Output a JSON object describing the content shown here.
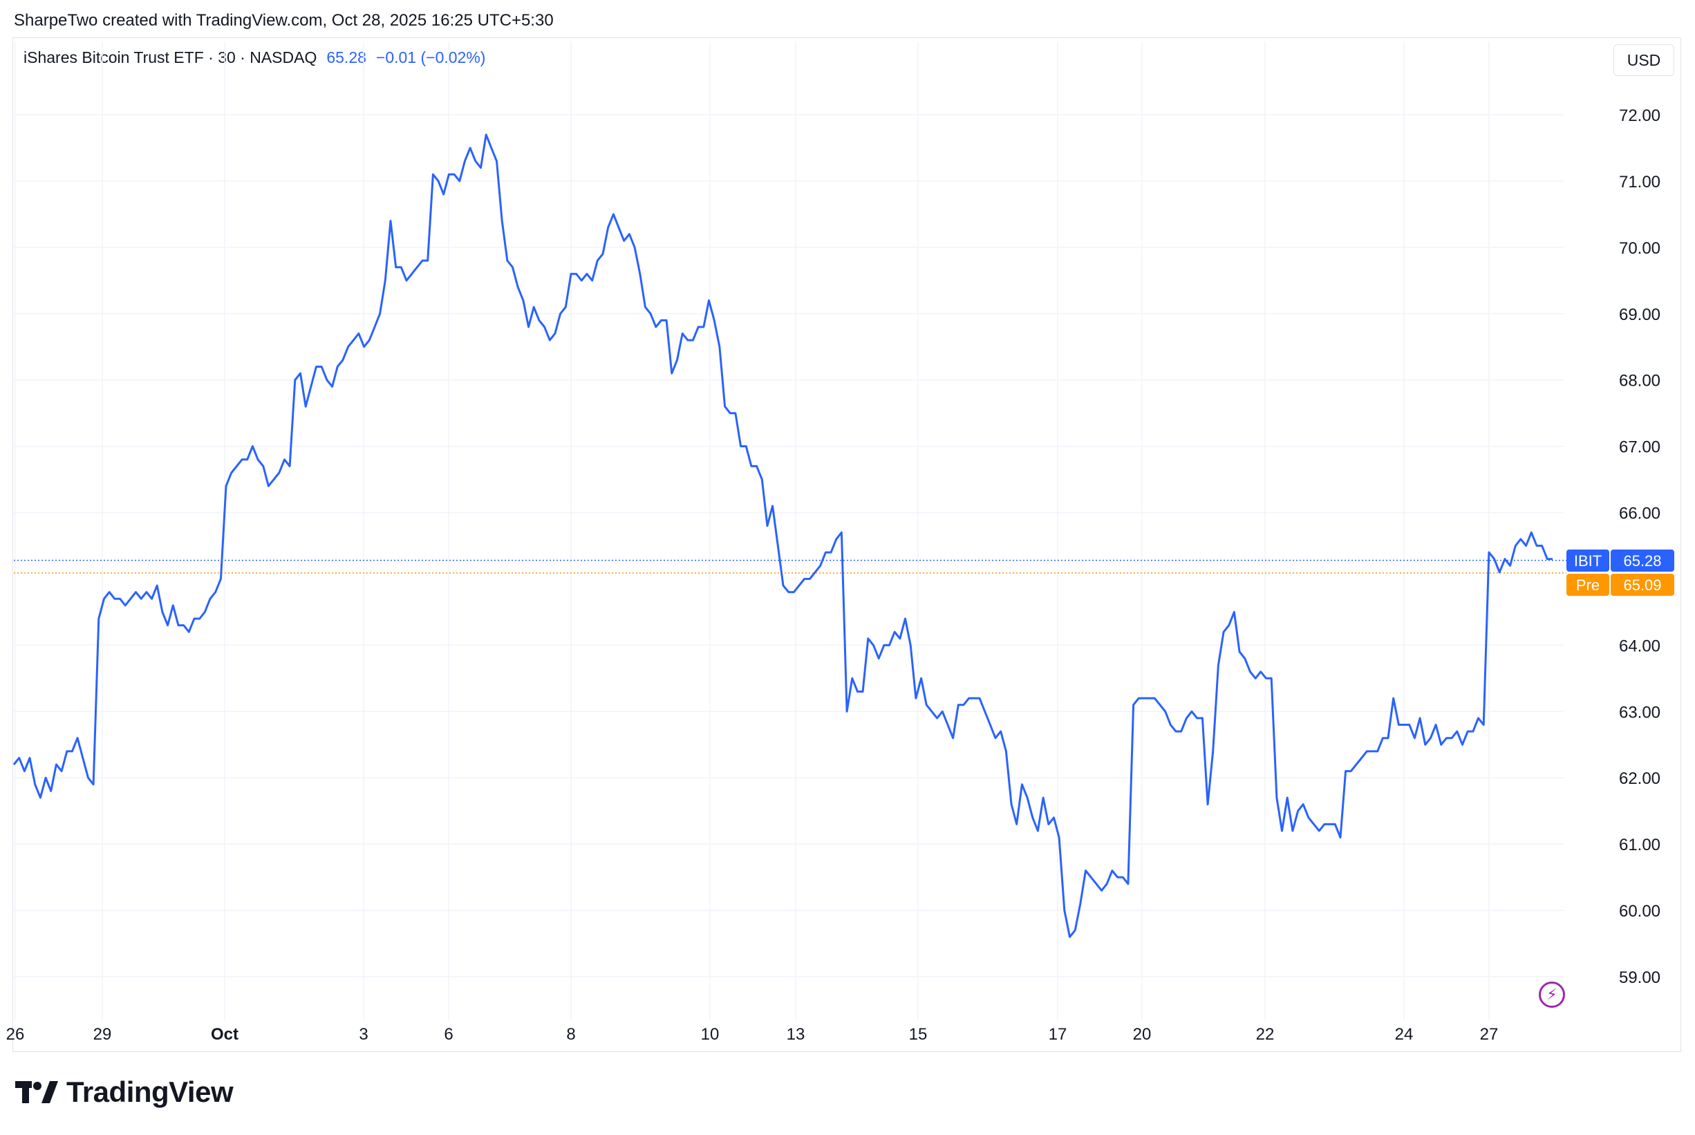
{
  "header": {
    "credit": "SharpeTwo created with TradingView.com, Oct 28, 2025 16:25 UTC+5:30"
  },
  "legend": {
    "instrument": "iShares Bitcoin Trust ETF · 30 · NASDAQ",
    "last": "65.28",
    "change": "−0.01 (−0.02%)"
  },
  "currency_button": "USD",
  "brand": "TradingView",
  "colors": {
    "line": "#2962ff",
    "pre": "#ff9800",
    "grid": "#f0f3fa",
    "text": "#131722"
  },
  "chart_data": {
    "type": "line",
    "title": "",
    "xlabel": "",
    "ylabel": "",
    "ylim": [
      58.5,
      72.6
    ],
    "x_tick_labels": [
      "26",
      "29",
      "Oct",
      "3",
      "6",
      "8",
      "10",
      "13",
      "15",
      "17",
      "20",
      "22",
      "24",
      "27"
    ],
    "y_tick_labels": [
      "72.00",
      "71.00",
      "70.00",
      "69.00",
      "68.00",
      "67.00",
      "66.00",
      "64.00",
      "63.00",
      "62.00",
      "61.00",
      "60.00",
      "59.00"
    ],
    "price_labels": [
      {
        "tag": "IBIT",
        "value": "65.28",
        "price": 65.28,
        "color": "#2962ff"
      },
      {
        "tag": "Pre",
        "value": "65.09",
        "price": 65.09,
        "color": "#ff9800"
      }
    ],
    "series": [
      {
        "values": [
          62.2,
          62.3,
          62.1,
          62.3,
          61.9,
          61.7,
          62.0,
          61.8,
          62.2,
          62.1,
          62.4,
          62.4,
          62.6,
          62.3,
          62.0,
          61.9,
          64.4,
          64.7,
          64.8,
          64.7,
          64.7,
          64.6,
          64.7,
          64.8,
          64.7,
          64.8,
          64.7,
          64.9,
          64.5,
          64.3,
          64.6,
          64.3,
          64.3,
          64.2,
          64.4,
          64.4,
          64.5,
          64.7,
          64.8,
          65.0,
          66.4,
          66.6,
          66.7,
          66.8,
          66.8,
          67.0,
          66.8,
          66.7,
          66.4,
          66.5,
          66.6,
          66.8,
          66.7,
          68.0,
          68.1,
          67.6,
          67.9,
          68.2,
          68.2,
          68.0,
          67.9,
          68.2,
          68.3,
          68.5,
          68.6,
          68.7,
          68.5,
          68.6,
          68.8,
          69.0,
          69.5,
          70.4,
          69.7,
          69.7,
          69.5,
          69.6,
          69.7,
          69.8,
          69.8,
          71.1,
          71.0,
          70.8,
          71.1,
          71.1,
          71.0,
          71.3,
          71.5,
          71.3,
          71.2,
          71.7,
          71.5,
          71.3,
          70.4,
          69.8,
          69.7,
          69.4,
          69.2,
          68.8,
          69.1,
          68.9,
          68.8,
          68.6,
          68.7,
          69.0,
          69.1,
          69.6,
          69.6,
          69.5,
          69.6,
          69.5,
          69.8,
          69.9,
          70.3,
          70.5,
          70.3,
          70.1,
          70.2,
          70.0,
          69.6,
          69.1,
          69.0,
          68.8,
          68.9,
          68.9,
          68.1,
          68.3,
          68.7,
          68.6,
          68.6,
          68.8,
          68.8,
          69.2,
          68.9,
          68.5,
          67.6,
          67.5,
          67.5,
          67.0,
          67.0,
          66.7,
          66.7,
          66.5,
          65.8,
          66.1,
          65.5,
          64.9,
          64.8,
          64.8,
          64.9,
          65.0,
          65.0,
          65.1,
          65.2,
          65.4,
          65.4,
          65.6,
          65.7,
          63.0,
          63.5,
          63.3,
          63.3,
          64.1,
          64.0,
          63.8,
          64.0,
          64.0,
          64.2,
          64.1,
          64.4,
          64.0,
          63.2,
          63.5,
          63.1,
          63.0,
          62.9,
          63.0,
          62.8,
          62.6,
          63.1,
          63.1,
          63.2,
          63.2,
          63.2,
          63.0,
          62.8,
          62.6,
          62.7,
          62.4,
          61.6,
          61.3,
          61.9,
          61.7,
          61.4,
          61.2,
          61.7,
          61.3,
          61.4,
          61.1,
          60.0,
          59.6,
          59.7,
          60.1,
          60.6,
          60.5,
          60.4,
          60.3,
          60.4,
          60.6,
          60.5,
          60.5,
          60.4,
          63.1,
          63.2,
          63.2,
          63.2,
          63.2,
          63.1,
          63.0,
          62.8,
          62.7,
          62.7,
          62.9,
          63.0,
          62.9,
          62.9,
          61.6,
          62.4,
          63.7,
          64.2,
          64.3,
          64.5,
          63.9,
          63.8,
          63.6,
          63.5,
          63.6,
          63.5,
          63.5,
          61.7,
          61.2,
          61.7,
          61.2,
          61.5,
          61.6,
          61.4,
          61.3,
          61.2,
          61.3,
          61.3,
          61.3,
          61.1,
          62.1,
          62.1,
          62.2,
          62.3,
          62.4,
          62.4,
          62.4,
          62.6,
          62.6,
          63.2,
          62.8,
          62.8,
          62.8,
          62.6,
          62.9,
          62.5,
          62.6,
          62.8,
          62.5,
          62.6,
          62.6,
          62.7,
          62.5,
          62.7,
          62.7,
          62.9,
          62.8,
          65.4,
          65.3,
          65.1,
          65.3,
          65.2,
          65.5,
          65.6,
          65.5,
          65.7,
          65.5,
          65.5,
          65.3,
          65.3
        ]
      }
    ]
  }
}
